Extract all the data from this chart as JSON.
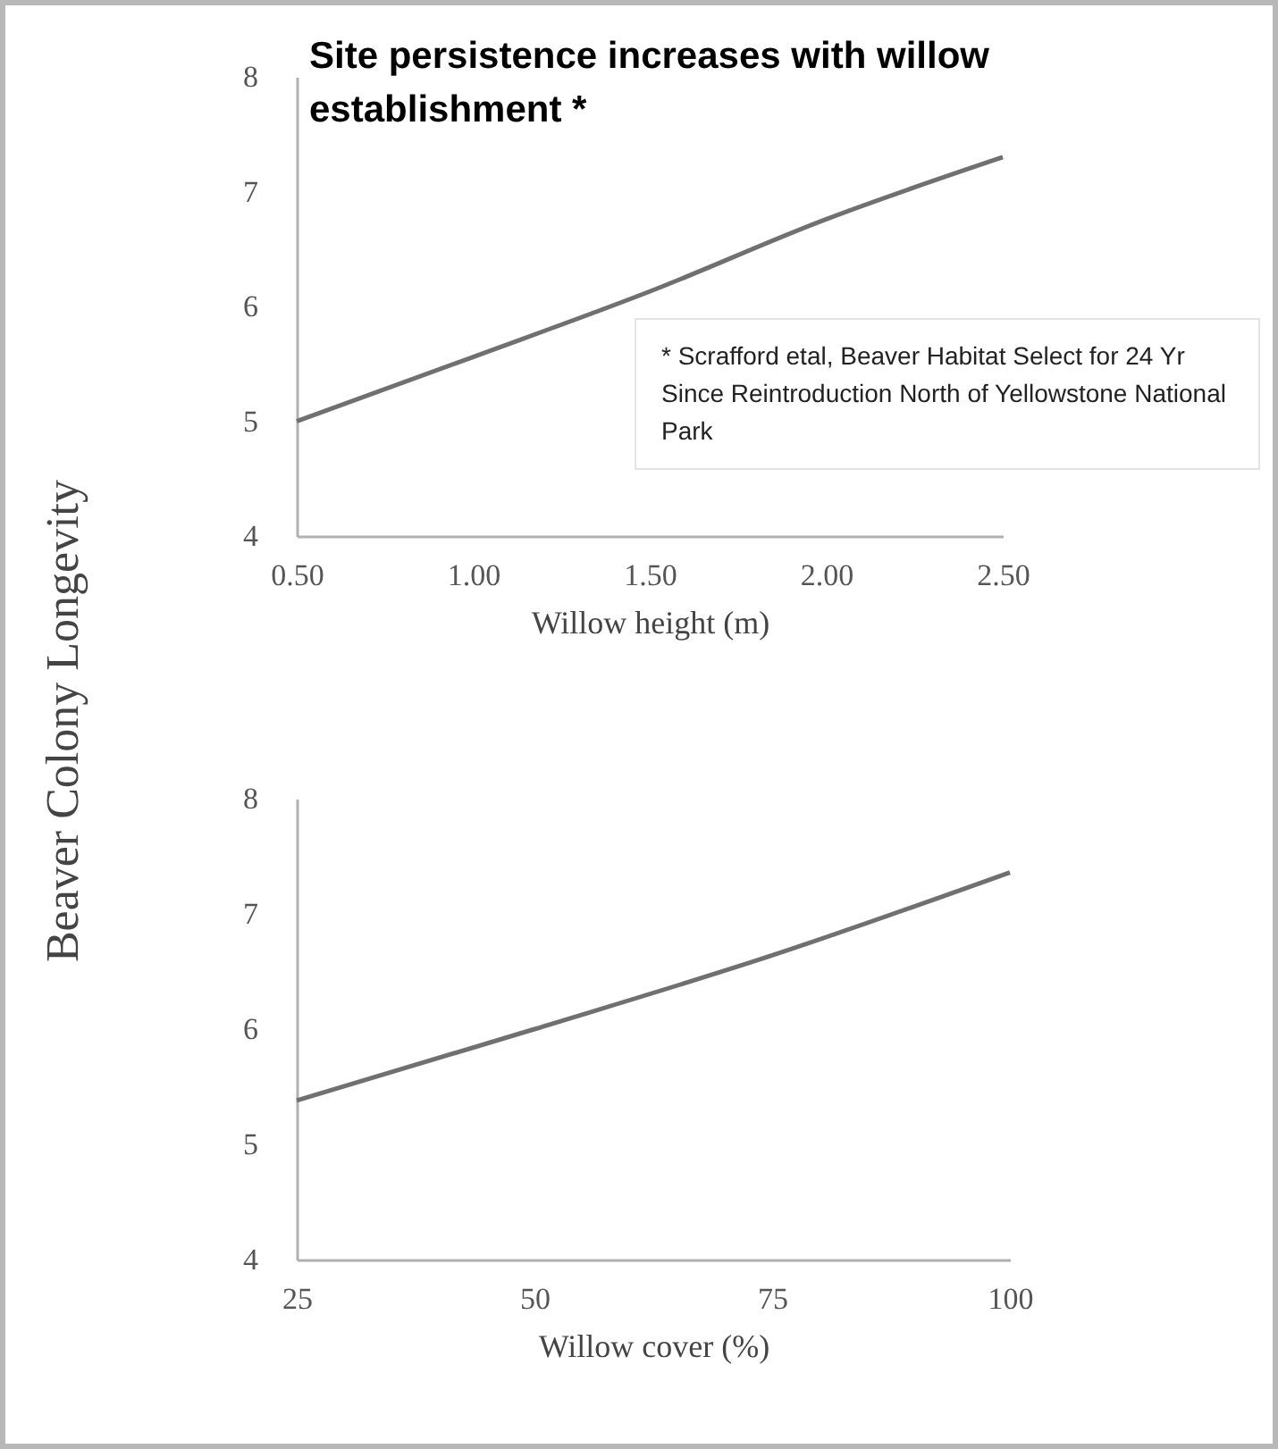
{
  "chart_data": [
    {
      "type": "line",
      "title": "Site persistence increases with willow establishment *",
      "xlabel": "Willow height (m)",
      "ylabel": "Beaver Colony Longevity",
      "x": [
        0.5,
        1.0,
        1.5,
        2.0,
        2.5
      ],
      "series": [
        {
          "color": "#707070",
          "values": [
            5.0,
            5.56,
            6.13,
            6.76,
            7.3
          ]
        }
      ],
      "xlim": [
        0.5,
        2.5
      ],
      "ylim": [
        4,
        8
      ],
      "xticks": [
        {
          "value": 0.5,
          "label": "0.50"
        },
        {
          "value": 1.0,
          "label": "1.00"
        },
        {
          "value": 1.5,
          "label": "1.50"
        },
        {
          "value": 2.0,
          "label": "2.00"
        },
        {
          "value": 2.5,
          "label": "2.50"
        }
      ],
      "yticks": [
        4,
        5,
        6,
        7,
        8
      ],
      "annotations": [
        "* Scrafford etal, Beaver Habitat Select for 24 Yr Since Reintroduction North of Yellowstone National Park"
      ]
    },
    {
      "type": "line",
      "xlabel": "Willow cover (%)",
      "x": [
        25,
        50,
        75,
        100
      ],
      "series": [
        {
          "color": "#707070",
          "values": [
            5.38,
            6.0,
            6.64,
            7.36
          ]
        }
      ],
      "xlim": [
        25,
        100
      ],
      "ylim": [
        4,
        8
      ],
      "xticks": [
        25,
        50,
        75,
        100
      ],
      "yticks": [
        4,
        5,
        6,
        7,
        8
      ]
    }
  ]
}
